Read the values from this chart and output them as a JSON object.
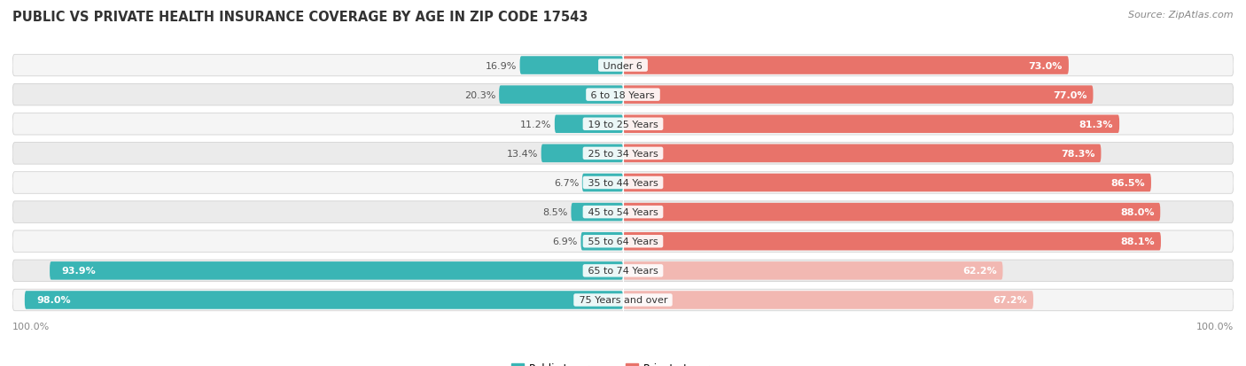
{
  "title": "PUBLIC VS PRIVATE HEALTH INSURANCE COVERAGE BY AGE IN ZIP CODE 17543",
  "source": "Source: ZipAtlas.com",
  "categories": [
    "Under 6",
    "6 to 18 Years",
    "19 to 25 Years",
    "25 to 34 Years",
    "35 to 44 Years",
    "45 to 54 Years",
    "55 to 64 Years",
    "65 to 74 Years",
    "75 Years and over"
  ],
  "public_values": [
    16.9,
    20.3,
    11.2,
    13.4,
    6.7,
    8.5,
    6.9,
    93.9,
    98.0
  ],
  "private_values": [
    73.0,
    77.0,
    81.3,
    78.3,
    86.5,
    88.0,
    88.1,
    62.2,
    67.2
  ],
  "public_color_strong": "#3ab5b5",
  "public_color_light": "#a8d8d8",
  "private_color_strong": "#e8736a",
  "private_color_light": "#f2b8b2",
  "row_colors": [
    "#f5f5f5",
    "#ebebeb"
  ],
  "public_threshold": 50.0,
  "xlim_left": -100,
  "xlim_right": 100,
  "legend_labels": [
    "Public Insurance",
    "Private Insurance"
  ],
  "title_fontsize": 10.5,
  "label_fontsize": 8,
  "bar_val_fontsize": 8,
  "source_fontsize": 8,
  "bg_color": "#ffffff"
}
